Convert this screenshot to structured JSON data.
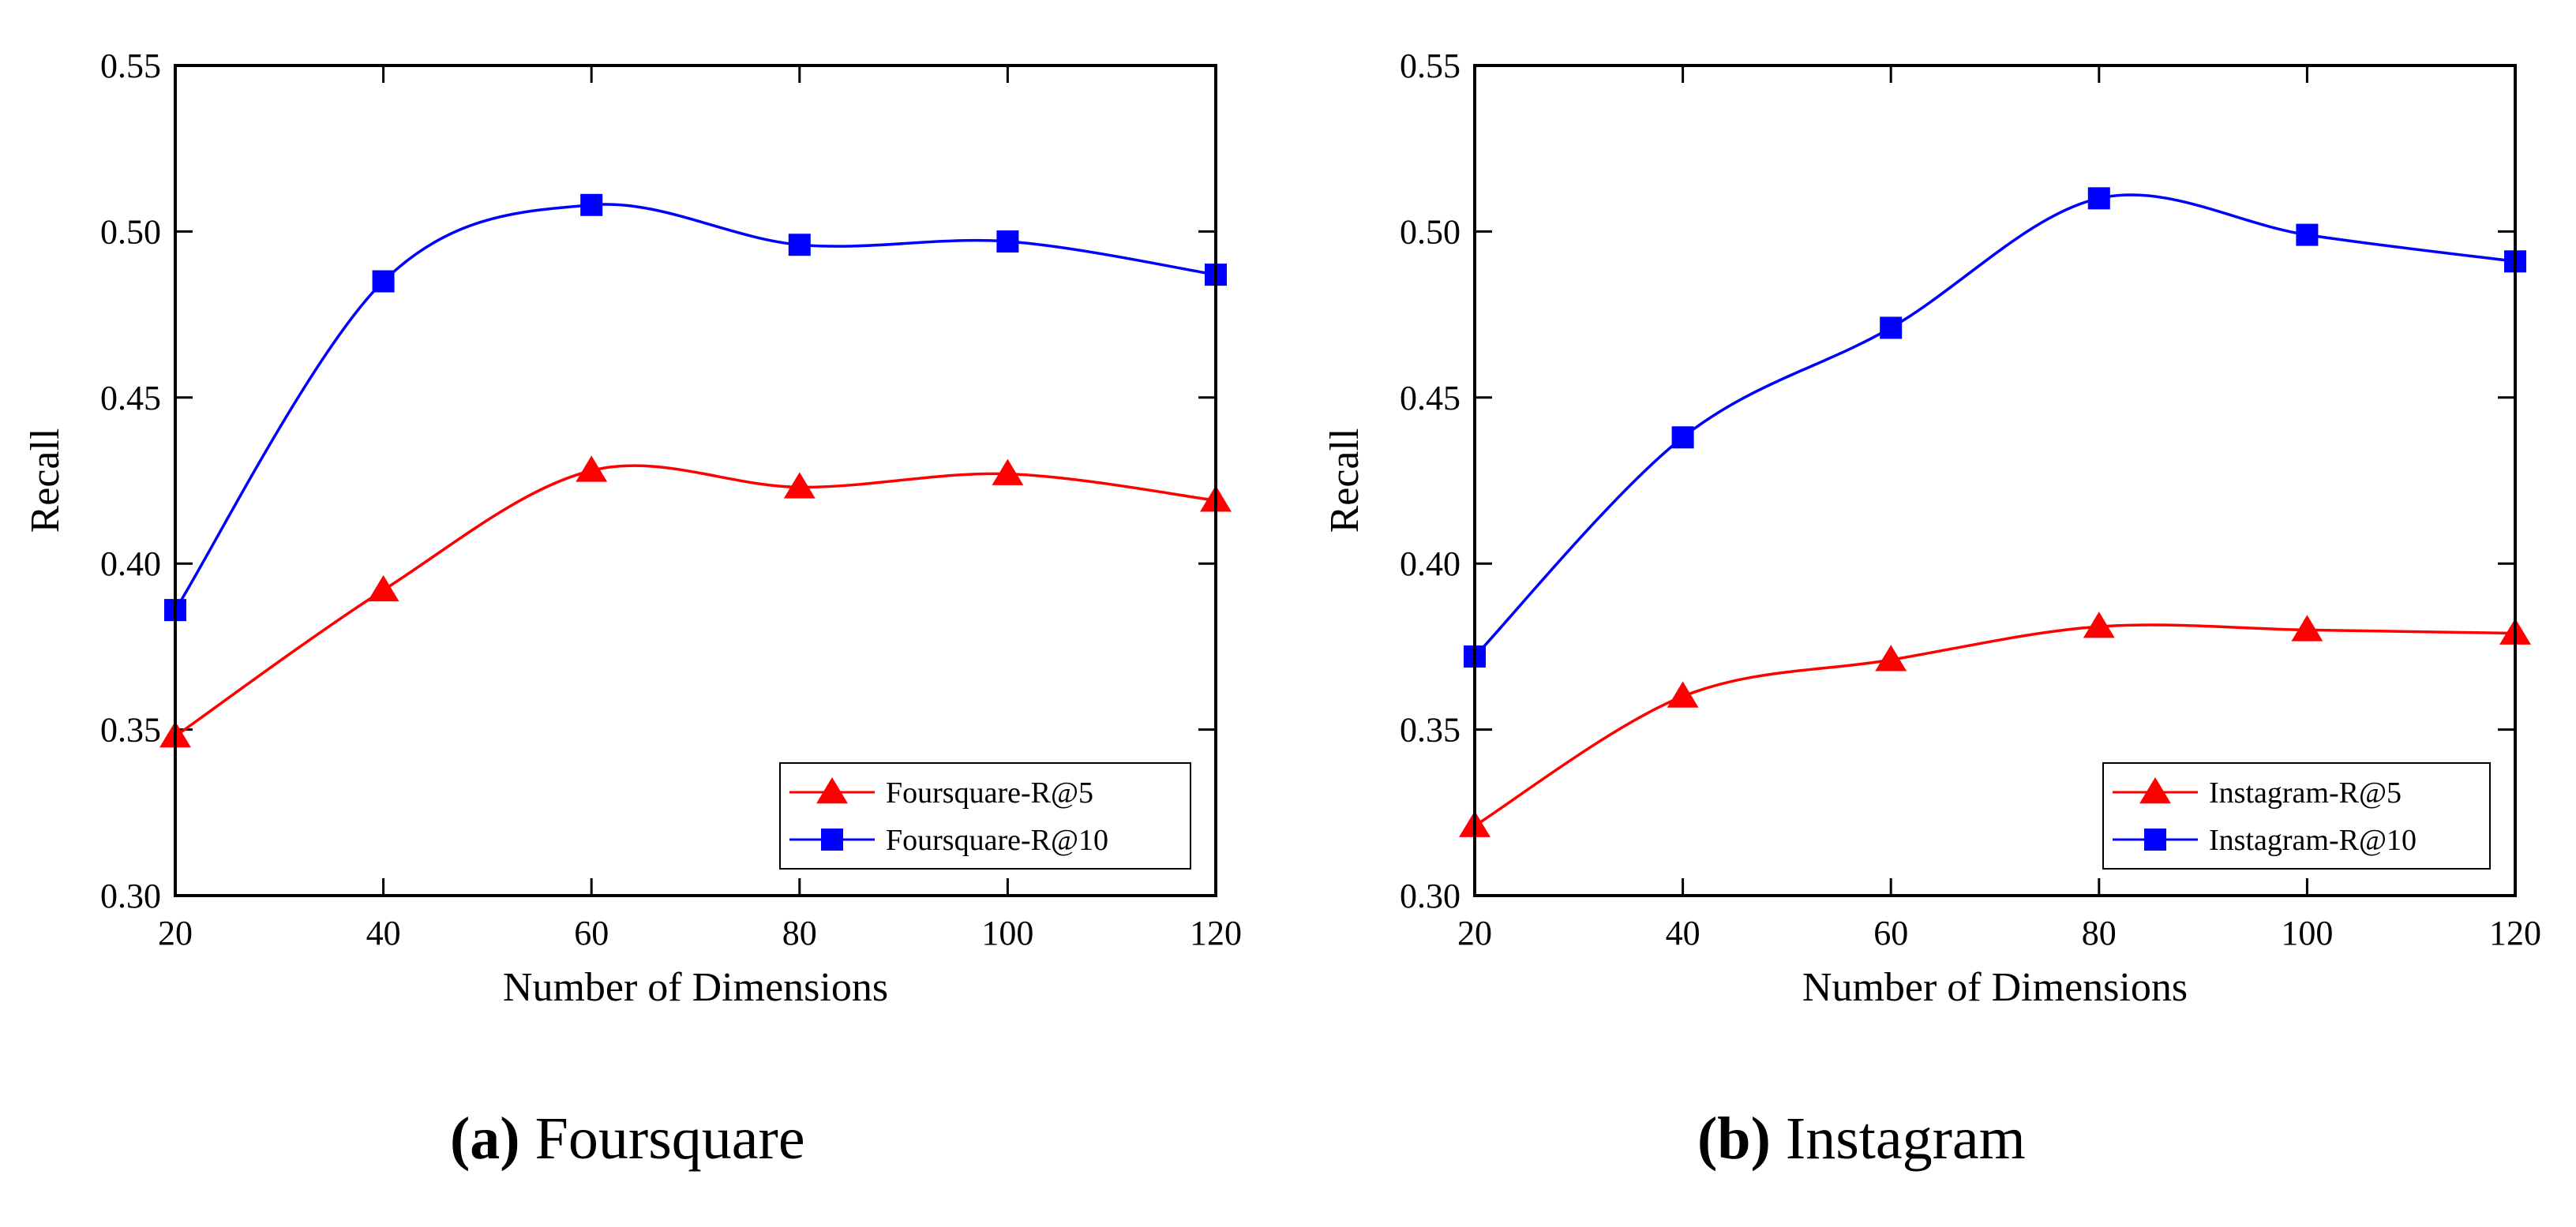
{
  "colors": {
    "series_r5": "#ff0000",
    "series_r10": "#0000ff",
    "axis": "#000000",
    "background": "#ffffff"
  },
  "chart_data": [
    {
      "type": "line",
      "panel": "a",
      "title": "",
      "xlabel": "Number of Dimensions",
      "ylabel": "Recall",
      "x": [
        20,
        40,
        60,
        80,
        100,
        120
      ],
      "xticks": [
        "20",
        "40",
        "60",
        "80",
        "100",
        "120"
      ],
      "yticks": [
        "0.30",
        "0.35",
        "0.40",
        "0.45",
        "0.50",
        "0.55"
      ],
      "xlim": [
        20,
        120
      ],
      "ylim": [
        0.3,
        0.55
      ],
      "grid": false,
      "legend_position": "bottom-right",
      "series": [
        {
          "name": "Foursquare-R@5",
          "marker": "triangle",
          "color": "#ff0000",
          "values": [
            0.348,
            0.392,
            0.428,
            0.423,
            0.427,
            0.419
          ]
        },
        {
          "name": "Foursquare-R@10",
          "marker": "square",
          "color": "#0000ff",
          "values": [
            0.386,
            0.485,
            0.508,
            0.496,
            0.497,
            0.487
          ]
        }
      ]
    },
    {
      "type": "line",
      "panel": "b",
      "title": "",
      "xlabel": "Number of Dimensions",
      "ylabel": "Recall",
      "x": [
        20,
        40,
        60,
        80,
        100,
        120
      ],
      "xticks": [
        "20",
        "40",
        "60",
        "80",
        "100",
        "120"
      ],
      "yticks": [
        "0.30",
        "0.35",
        "0.40",
        "0.45",
        "0.50",
        "0.55"
      ],
      "xlim": [
        20,
        120
      ],
      "ylim": [
        0.3,
        0.55
      ],
      "grid": false,
      "legend_position": "bottom-right",
      "series": [
        {
          "name": "Instagram-R@5",
          "marker": "triangle",
          "color": "#ff0000",
          "values": [
            0.321,
            0.36,
            0.371,
            0.381,
            0.38,
            0.379
          ]
        },
        {
          "name": "Instagram-R@10",
          "marker": "square",
          "color": "#0000ff",
          "values": [
            0.372,
            0.438,
            0.471,
            0.51,
            0.499,
            0.491
          ]
        }
      ]
    }
  ],
  "captions": [
    {
      "letter": "(a)",
      "text": " Foursquare"
    },
    {
      "letter": "(b)",
      "text": " Instagram"
    }
  ]
}
